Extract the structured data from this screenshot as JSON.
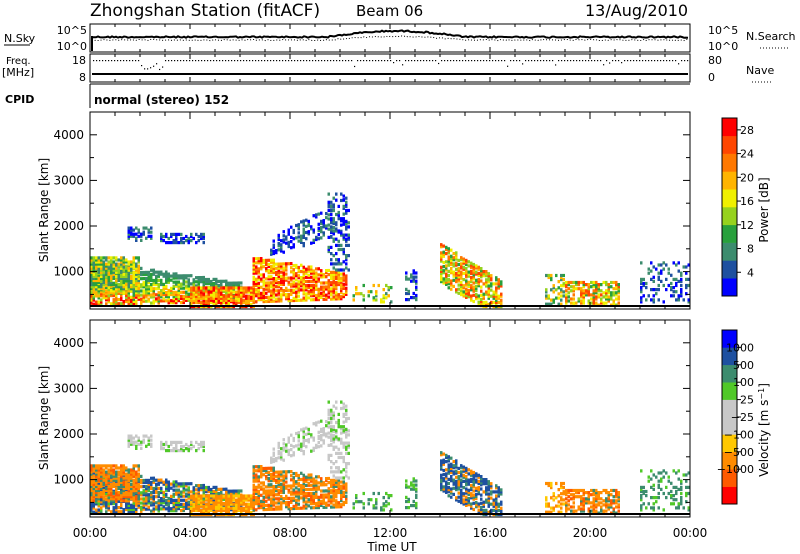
{
  "header": {
    "station": "Zhongshan Station (fitACF)",
    "beam": "Beam 06",
    "date": "13/Aug/2010"
  },
  "summary": {
    "nsky_label": "N.Sky",
    "nsky_top": "10^5",
    "nsky_bottom": "10^0",
    "nsearch_label": "N.Search",
    "nsearch_top": "10^5",
    "nsearch_bottom": "10^0",
    "freq_label": "Freq.",
    "freq_unit": "[MHz]",
    "freq_top": "18",
    "freq_bottom": "8",
    "nave_label": "Nave",
    "nave_top": "80",
    "nave_bottom": "0",
    "cpid_label": "CPID",
    "cpid_value": "normal (stereo) 152"
  },
  "colors": {
    "power": [
      "#0000ff",
      "#1e50a0",
      "#3c8c6e",
      "#28a03c",
      "#96d21e",
      "#f0f000",
      "#ffb400",
      "#ff7800",
      "#ff4600",
      "#ff0000"
    ],
    "velocity": [
      "#ff0000",
      "#ff5a00",
      "#ff8c00",
      "#ffc800",
      "#c8c8c8",
      "#c8c8c8",
      "#50c828",
      "#3c8c6e",
      "#1e50a0",
      "#0000ff"
    ]
  },
  "chart_data": [
    {
      "type": "heatmap",
      "panel": "power",
      "xlabel": "",
      "ylabel": "Slant Range [km]",
      "xlim": [
        0,
        24
      ],
      "ylim": [
        180,
        4500
      ],
      "yticks": [
        "1000",
        "2000",
        "3000",
        "4000"
      ],
      "colorbar_label": "Power [dB]",
      "colorbar_ticks": [
        "4",
        "8",
        "12",
        "16",
        "20",
        "24",
        "28"
      ],
      "colorbar_range": [
        0,
        30
      ]
    },
    {
      "type": "heatmap",
      "panel": "velocity",
      "xlabel": "Time UT",
      "ylabel": "Slant Range [km]",
      "xlim": [
        0,
        24
      ],
      "ylim": [
        180,
        4500
      ],
      "yticks": [
        "1000",
        "2000",
        "3000",
        "4000"
      ],
      "xticks": [
        "00:00",
        "04:00",
        "08:00",
        "12:00",
        "16:00",
        "20:00",
        "00:00"
      ],
      "colorbar_label": "Velocity [m s^-1]",
      "colorbar_ticks": [
        "1000",
        "500",
        "100",
        "25",
        "-25",
        "-100",
        "-500",
        "-1000"
      ]
    }
  ]
}
